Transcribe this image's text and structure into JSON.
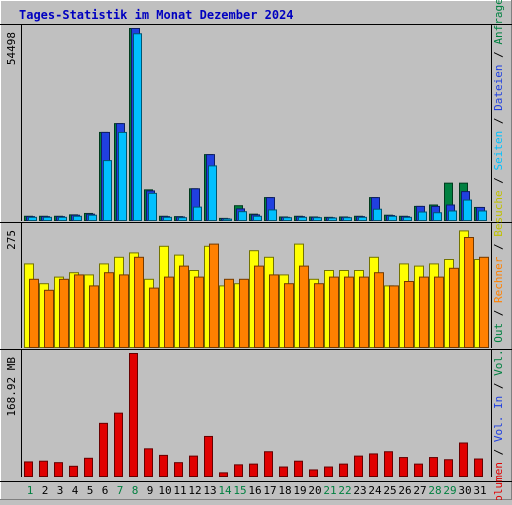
{
  "chart_data": {
    "type": "bar",
    "title": "Tages-Statistik im Monat Dezember 2024",
    "categories": [
      "1",
      "2",
      "3",
      "4",
      "5",
      "6",
      "7",
      "8",
      "9",
      "10",
      "11",
      "12",
      "13",
      "14",
      "15",
      "16",
      "17",
      "18",
      "19",
      "20",
      "21",
      "22",
      "23",
      "24",
      "25",
      "26",
      "27",
      "28",
      "29",
      "30",
      "31"
    ],
    "weekend_days": [
      "1",
      "7",
      "8",
      "14",
      "15",
      "21",
      "22",
      "28",
      "29"
    ],
    "panels": [
      {
        "id": "top",
        "scale_label": "54498",
        "ymax": 54498,
        "series": [
          {
            "name": "Anfragen",
            "color": "#008040",
            "values": [
              1200,
              1200,
              1200,
              1600,
              2000,
              25000,
              27500,
              54498,
              8700,
              1200,
              1100,
              9000,
              18700,
              600,
              4200,
              1800,
              6500,
              1000,
              1200,
              1000,
              900,
              1000,
              1200,
              6500,
              1500,
              1200,
              4000,
              4400,
              10600,
              10600,
              3700
            ]
          },
          {
            "name": "Dateien",
            "color": "#2040e0",
            "values": [
              1100,
              1100,
              1100,
              1500,
              1800,
              25000,
              27500,
              54498,
              8400,
              1100,
              1000,
              9000,
              18700,
              500,
              3300,
              1600,
              6500,
              900,
              1100,
              900,
              800,
              900,
              1100,
              6500,
              1400,
              1100,
              4000,
              4000,
              4400,
              8200,
              3700
            ]
          },
          {
            "name": "Seiten",
            "color": "#00c0ff",
            "values": [
              900,
              900,
              900,
              1200,
              1500,
              17000,
              25000,
              53000,
              7700,
              900,
              800,
              3800,
              15500,
              400,
              2500,
              1200,
              3000,
              800,
              900,
              800,
              700,
              800,
              900,
              3200,
              1200,
              900,
              2400,
              2200,
              2700,
              5800,
              2700
            ]
          }
        ]
      },
      {
        "id": "middle",
        "scale_label": "275",
        "ymax": 275,
        "series": [
          {
            "name": "Besuche",
            "color": "#ffff00",
            "values": [
              190,
              145,
              160,
              170,
              165,
              190,
              205,
              215,
              155,
              230,
              210,
              175,
              230,
              140,
              145,
              220,
              205,
              165,
              235,
              155,
              175,
              175,
              175,
              205,
              140,
              190,
              185,
              190,
              200,
              265,
              200
            ]
          },
          {
            "name": "Rechner",
            "color": "#ff8000",
            "values": [
              155,
              130,
              155,
              165,
              140,
              170,
              165,
              205,
              135,
              160,
              185,
              160,
              235,
              155,
              155,
              185,
              165,
              145,
              185,
              145,
              160,
              160,
              160,
              170,
              140,
              150,
              160,
              160,
              180,
              250,
              205
            ]
          }
        ]
      },
      {
        "id": "bottom",
        "scale_label": "168.92 MB",
        "ymax": 168.92,
        "series": [
          {
            "name": "Volumen",
            "color": "#e00000",
            "values": [
              20,
              21,
              19,
              14,
              25,
              73,
              87,
              168.92,
              38,
              29,
              19,
              28,
              55,
              5,
              16,
              17,
              34,
              13,
              21,
              9,
              13,
              17,
              28,
              31,
              34,
              26,
              17,
              26,
              23,
              46,
              24
            ]
          }
        ]
      }
    ],
    "right_legend": [
      {
        "text": "Anfragen",
        "color": "#008040"
      },
      {
        "text": "Dateien",
        "color": "#2040e0"
      },
      {
        "text": "Seiten",
        "color": "#00c0ff"
      },
      {
        "text": "Besuche",
        "color": "#c0c000"
      },
      {
        "text": "Rechner",
        "color": "#ff8000"
      },
      {
        "text": "Vol. Out",
        "color": "#008040"
      },
      {
        "text": "Vol. In",
        "color": "#2040e0"
      },
      {
        "text": "Volumen",
        "color": "#e00000"
      }
    ],
    "colors": {
      "background": "#c0c0c0",
      "title": "#0000c0",
      "weekday_label": "#000000",
      "weekend_label": "#008040",
      "separator": "#000000"
    }
  }
}
